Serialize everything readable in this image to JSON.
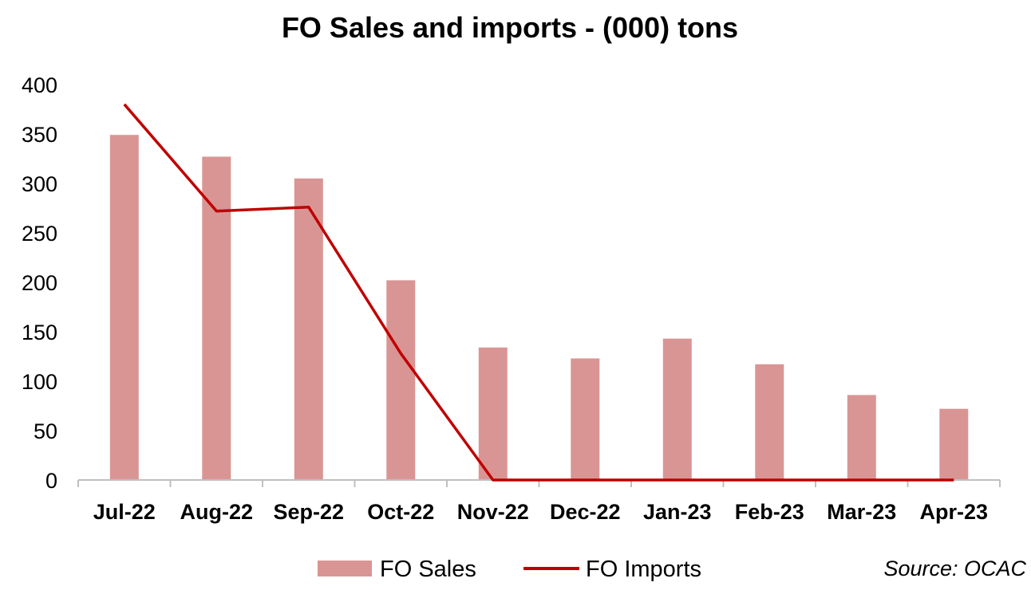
{
  "chart_data": {
    "type": "bar",
    "title": "FO Sales and imports - (000) tons",
    "xlabel": "",
    "ylabel": "",
    "categories": [
      "Jul-22",
      "Aug-22",
      "Sep-22",
      "Oct-22",
      "Nov-22",
      "Dec-22",
      "Jan-23",
      "Feb-23",
      "Mar-23",
      "Apr-23"
    ],
    "ylim": [
      0,
      400
    ],
    "yticks": [
      0,
      50,
      100,
      150,
      200,
      250,
      300,
      350,
      400
    ],
    "grid": false,
    "legend": "bottom",
    "series": [
      {
        "name": "FO Sales",
        "type": "bar",
        "color": "#d99594",
        "values": [
          349,
          327,
          305,
          202,
          134,
          123,
          143,
          117,
          86,
          72
        ]
      },
      {
        "name": "FO Imports",
        "type": "line",
        "color": "#c00000",
        "values": [
          380,
          272,
          276,
          128,
          0,
          0,
          0,
          0,
          0,
          0
        ]
      }
    ],
    "source": "Source: OCAC"
  }
}
